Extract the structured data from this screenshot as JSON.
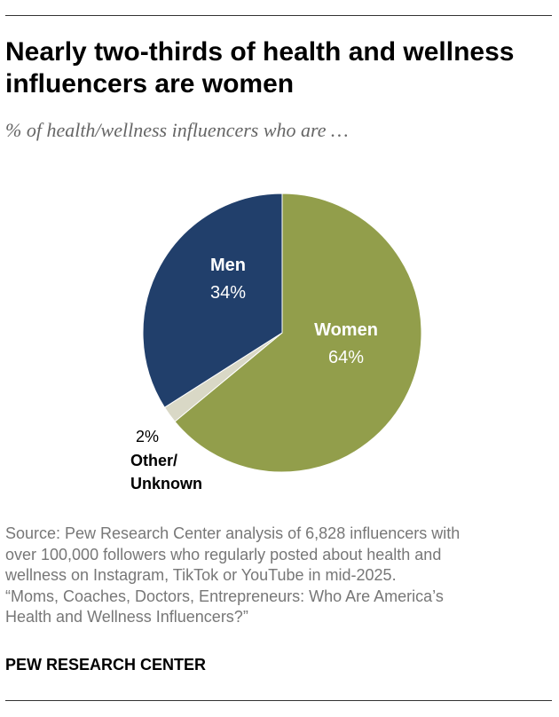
{
  "header": {
    "title": "Nearly two-thirds of health and wellness influencers are women",
    "subtitle": "% of health/wellness influencers who are …"
  },
  "chart_data": {
    "type": "pie",
    "title": "Nearly two-thirds of health and wellness influencers are women",
    "subtitle": "% of health/wellness influencers who are …",
    "unit": "%",
    "slices": [
      {
        "label": "Women",
        "value": 64,
        "value_label": "64%",
        "color": "#929e4b",
        "label_color": "#ffffff"
      },
      {
        "label": "Other/ Unknown",
        "value": 2,
        "value_label": "2%",
        "color": "#d9d8c6",
        "label_color": "#000000"
      },
      {
        "label": "Men",
        "value": 34,
        "value_label": "34%",
        "color": "#213f6b",
        "label_color": "#ffffff"
      }
    ],
    "start_angle_deg": 0,
    "direction": "clockwise",
    "legend": "none"
  },
  "footer": {
    "source_lines": [
      "Source: Pew Research Center analysis of 6,828 influencers with",
      "over 100,000 followers who regularly posted about health and",
      "wellness on Instagram, TikTok or YouTube in mid-2025.",
      "“Moms, Coaches, Doctors, Entrepreneurs: Who Are America’s",
      "Health and Wellness Influencers?”"
    ],
    "brand": "PEW RESEARCH CENTER"
  }
}
